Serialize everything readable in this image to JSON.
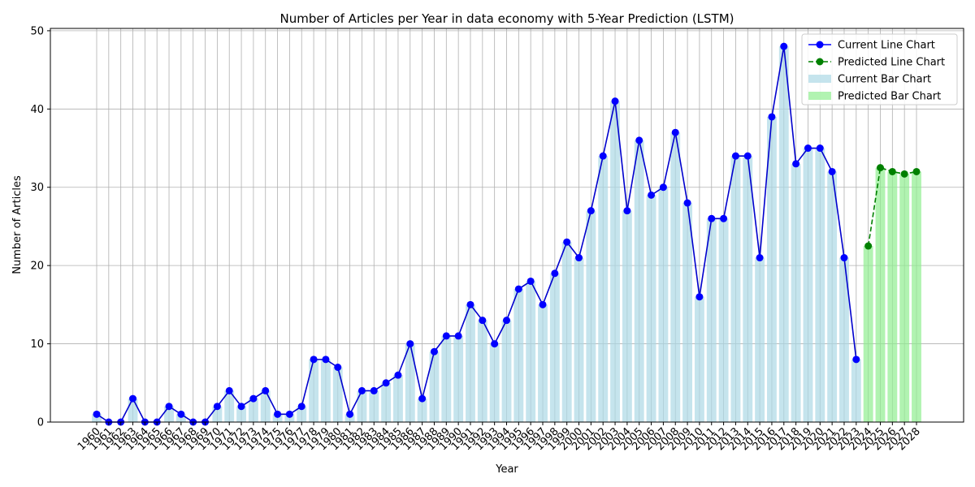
{
  "chart_data": {
    "type": "bar",
    "title": "Number of Articles per Year in data economy with 5-Year Prediction (LSTM)",
    "xlabel": "Year",
    "ylabel": "Number of Articles",
    "ylim": [
      0,
      50.3
    ],
    "yticks": [
      0,
      10,
      20,
      30,
      40,
      50
    ],
    "grid": true,
    "legend_position": "top-right",
    "colors": {
      "current_line": "#0000ff",
      "current_line_stroke": "#0000cd",
      "predicted_line": "#008000",
      "current_bar": "#add8e6",
      "predicted_bar": "#90ee90",
      "grid": "#b0b0b0"
    },
    "current": {
      "years": [
        1960,
        1961,
        1962,
        1963,
        1964,
        1965,
        1966,
        1967,
        1968,
        1969,
        1970,
        1971,
        1972,
        1973,
        1974,
        1975,
        1976,
        1977,
        1978,
        1979,
        1980,
        1981,
        1982,
        1983,
        1984,
        1985,
        1986,
        1987,
        1988,
        1989,
        1990,
        1991,
        1992,
        1993,
        1994,
        1995,
        1996,
        1997,
        1998,
        1999,
        2000,
        2001,
        2002,
        2003,
        2004,
        2005,
        2006,
        2007,
        2008,
        2009,
        2010,
        2011,
        2012,
        2013,
        2014,
        2015,
        2016,
        2017,
        2018,
        2019,
        2020,
        2021,
        2022,
        2023
      ],
      "values": [
        1,
        0,
        0,
        3,
        0,
        0,
        2,
        1,
        0,
        0,
        2,
        4,
        2,
        3,
        4,
        1,
        1,
        2,
        8,
        8,
        7,
        1,
        4,
        4,
        5,
        6,
        10,
        3,
        9,
        11,
        11,
        15,
        13,
        10,
        13,
        17,
        18,
        15,
        19,
        23,
        21,
        27,
        34,
        41,
        27,
        36,
        29,
        30,
        37,
        28,
        16,
        26,
        26,
        34,
        34,
        21,
        39,
        48,
        33,
        35,
        35,
        32,
        21,
        8
      ]
    },
    "predicted": {
      "years": [
        2024,
        2025,
        2026,
        2027,
        2028
      ],
      "values": [
        22.5,
        32.5,
        32.0,
        31.7,
        32.0
      ]
    },
    "legend": [
      {
        "label": "Current Line Chart",
        "kind": "line-solid",
        "color": "#0000ff"
      },
      {
        "label": "Predicted Line Chart",
        "kind": "line-dashed",
        "color": "#008000"
      },
      {
        "label": "Current Bar Chart",
        "kind": "bar",
        "color": "#add8e6"
      },
      {
        "label": "Predicted Bar Chart",
        "kind": "bar",
        "color": "#90ee90"
      }
    ]
  }
}
